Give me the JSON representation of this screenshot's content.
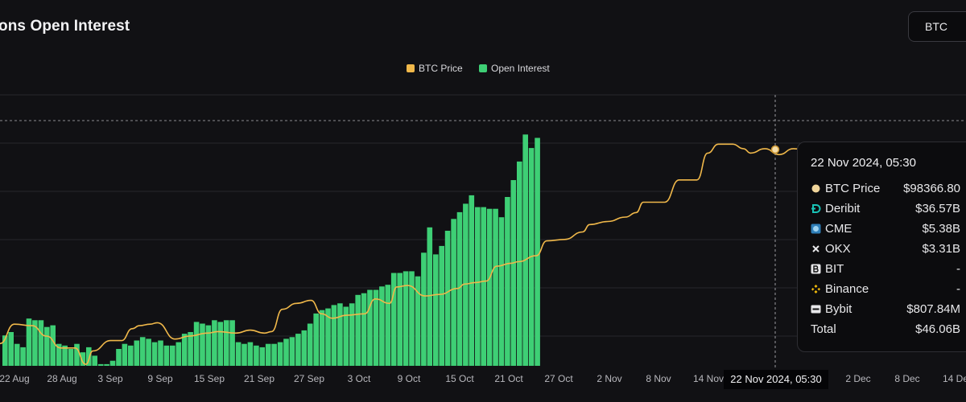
{
  "header": {
    "title": "ons Open Interest",
    "asset_button": "BTC"
  },
  "legend": [
    {
      "label": "BTC Price",
      "color": "#f0b84a"
    },
    {
      "label": "Open Interest",
      "color": "#3ecf75"
    }
  ],
  "tooltip": {
    "title": "22 Nov 2024, 05:30",
    "rows": [
      {
        "label": "BTC Price",
        "value": "$98366.80",
        "icon": "btc-price-dot-icon"
      },
      {
        "label": "Deribit",
        "value": "$36.57B",
        "icon": "deribit-icon"
      },
      {
        "label": "CME",
        "value": "$5.38B",
        "icon": "cme-icon"
      },
      {
        "label": "OKX",
        "value": "$3.31B",
        "icon": "okx-icon"
      },
      {
        "label": "BIT",
        "value": "-",
        "icon": "bit-icon"
      },
      {
        "label": "Binance",
        "value": "-",
        "icon": "binance-icon"
      },
      {
        "label": "Bybit",
        "value": "$807.84M",
        "icon": "bybit-icon"
      }
    ],
    "total_label": "Total",
    "total_value": "$46.06B"
  },
  "x_highlight": "22 Nov 2024, 05:30",
  "chart_data": {
    "type": "bar",
    "title": "",
    "xlabel": "",
    "ylabel": "",
    "x_tick_labels": [
      "22 Aug",
      "28 Aug",
      "3 Sep",
      "9 Sep",
      "15 Sep",
      "21 Sep",
      "27 Sep",
      "3 Oct",
      "9 Oct",
      "15 Oct",
      "21 Oct",
      "27 Oct",
      "2 Nov",
      "8 Nov",
      "14 Nov",
      "22 Nov 2024, 05:30",
      "2 Dec",
      "8 Dec",
      "14 Dec"
    ],
    "grid": "horizontal",
    "legend_placement": "top-center",
    "series": [
      {
        "name": "Open Interest",
        "type": "bar",
        "color": "#3ecf75",
        "values": [
          18,
          20,
          13,
          11,
          28,
          27,
          27,
          23,
          24,
          13,
          12,
          10,
          13,
          8,
          11,
          6,
          1,
          1,
          3,
          10,
          13,
          12,
          15,
          17,
          16,
          14,
          15,
          12,
          12,
          14,
          19,
          20,
          26,
          25,
          24,
          27,
          26,
          27,
          27,
          14,
          13,
          14,
          12,
          11,
          13,
          13,
          14,
          16,
          17,
          19,
          21,
          25,
          31,
          33,
          34,
          36,
          37,
          35,
          37,
          42,
          43,
          45,
          45,
          47,
          48,
          55,
          55,
          56,
          56,
          53,
          67,
          82,
          66,
          71,
          80,
          87,
          91,
          96,
          101,
          94,
          94,
          93,
          93,
          88,
          100,
          110,
          121,
          137,
          129,
          135
        ]
      },
      {
        "name": "BTC Price",
        "type": "line",
        "color": "#f0b84a",
        "points": [
          [
            0,
            15
          ],
          [
            4,
            28
          ],
          [
            9,
            27
          ],
          [
            13,
            20
          ],
          [
            17,
            12
          ],
          [
            21,
            12
          ],
          [
            24,
            1
          ],
          [
            26,
            10
          ],
          [
            31,
            17
          ],
          [
            34,
            17
          ],
          [
            37,
            25
          ],
          [
            39,
            27
          ],
          [
            42,
            28
          ],
          [
            44,
            29
          ],
          [
            49,
            18
          ],
          [
            53,
            20
          ],
          [
            58,
            22
          ],
          [
            61,
            23
          ],
          [
            66,
            22
          ],
          [
            70,
            24
          ],
          [
            74,
            22
          ],
          [
            76,
            23
          ],
          [
            79,
            38
          ],
          [
            83,
            42
          ],
          [
            87,
            44
          ],
          [
            90,
            35
          ],
          [
            93,
            32
          ],
          [
            97,
            34
          ],
          [
            102,
            35
          ],
          [
            105,
            45
          ],
          [
            109,
            42
          ],
          [
            111,
            53
          ],
          [
            114,
            54
          ],
          [
            119,
            47
          ],
          [
            123,
            48
          ],
          [
            128,
            52
          ],
          [
            130,
            55
          ],
          [
            133,
            56
          ],
          [
            136,
            57
          ],
          [
            139,
            67
          ],
          [
            143,
            69
          ],
          [
            145,
            70
          ],
          [
            150,
            74
          ],
          [
            153,
            84
          ],
          [
            158,
            85
          ],
          [
            163,
            90
          ],
          [
            165,
            95
          ],
          [
            170,
            97
          ],
          [
            175,
            100
          ],
          [
            178,
            103
          ],
          [
            180,
            110
          ],
          [
            186,
            110
          ],
          [
            190,
            125
          ],
          [
            195,
            125
          ],
          [
            198,
            143
          ],
          [
            201,
            149
          ],
          [
            205,
            149
          ],
          [
            208,
            146
          ],
          [
            210,
            143
          ],
          [
            214,
            146
          ],
          [
            218,
            142
          ],
          [
            222,
            146
          ],
          [
            226,
            145
          ],
          [
            230,
            147
          ],
          [
            234,
            146
          ],
          [
            238,
            144
          ],
          [
            242,
            146
          ],
          [
            246,
            144
          ],
          [
            250,
            145
          ],
          [
            254,
            146
          ],
          [
            258,
            144
          ],
          [
            262,
            145
          ],
          [
            266,
            143
          ],
          [
            270,
            146
          ]
        ]
      }
    ]
  }
}
